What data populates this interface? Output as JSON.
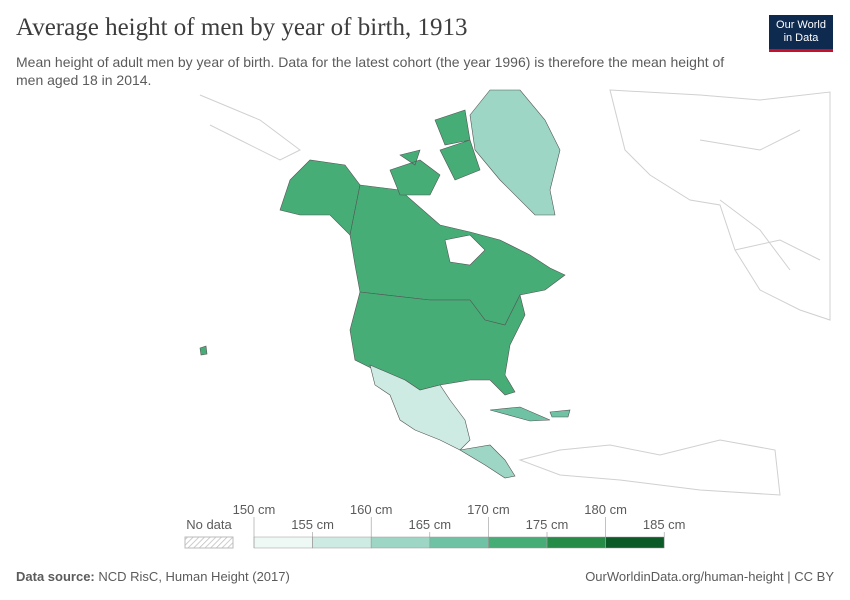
{
  "header": {
    "title": "Average height of men by year of birth, 1913",
    "subtitle": "Mean height of adult men by year of birth. Data for the latest cohort (the year 1996) is therefore the mean height of men aged 18 in 2014."
  },
  "logo": {
    "line1": "Our World",
    "line2": "in Data"
  },
  "legend": {
    "no_data": "No data",
    "ticks": [
      "150 cm",
      "155 cm",
      "160 cm",
      "165 cm",
      "170 cm",
      "175 cm",
      "180 cm",
      "185 cm"
    ],
    "colors": [
      "#eef8f5",
      "#cdebe2",
      "#9dd6c4",
      "#6fc2a3",
      "#47ad77",
      "#278b48",
      "#0b5a28"
    ]
  },
  "footer": {
    "source_label": "Data source:",
    "source": "NCD RisC, Human Height (2017)",
    "url": "OurWorldinData.org/human-height | CC BY"
  }
}
